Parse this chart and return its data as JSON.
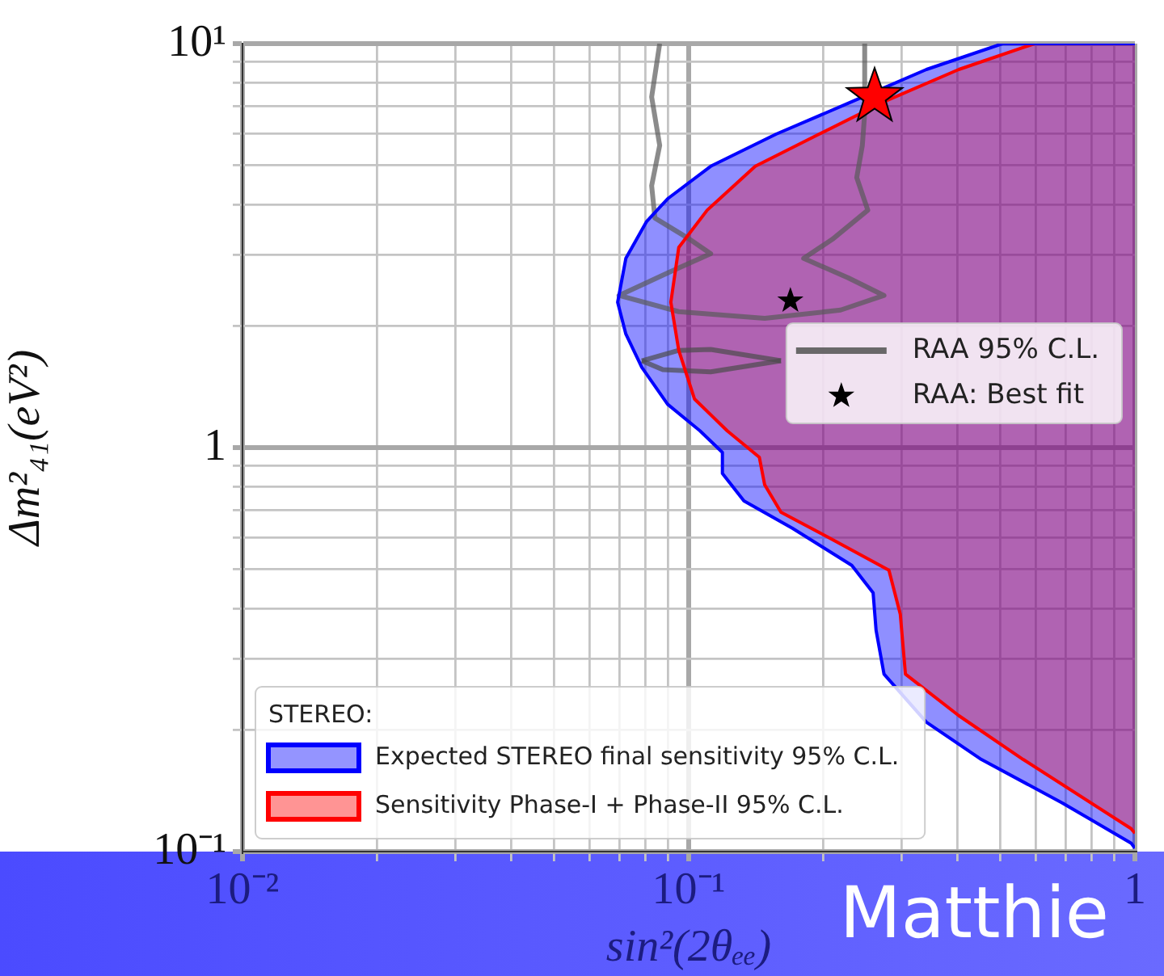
{
  "chart_data": {
    "type": "line",
    "xlabel": "sin²(2θₑₑ)",
    "ylabel": "Δm²₄₁(eV²)",
    "log": "xy",
    "grid": true,
    "legend": "bottom left",
    "legend_title": "STEREO:",
    "xlim": [
      0.01,
      1
    ],
    "ylim": [
      0.1,
      10
    ],
    "xticks": [
      {
        "value": 0.01,
        "label": "10⁻²"
      },
      {
        "value": 0.02,
        "label": null
      },
      {
        "value": 0.03,
        "label": null
      },
      {
        "value": 0.04,
        "label": null
      },
      {
        "value": 0.05,
        "label": null
      },
      {
        "value": 0.06,
        "label": null
      },
      {
        "value": 0.07,
        "label": null
      },
      {
        "value": 0.08,
        "label": null
      },
      {
        "value": 0.09,
        "label": null
      },
      {
        "value": 0.1,
        "label": "10⁻¹"
      },
      {
        "value": 0.2,
        "label": null
      },
      {
        "value": 0.3,
        "label": null
      },
      {
        "value": 0.4,
        "label": null
      },
      {
        "value": 0.5,
        "label": null
      },
      {
        "value": 0.6,
        "label": null
      },
      {
        "value": 0.7,
        "label": null
      },
      {
        "value": 0.8,
        "label": null
      },
      {
        "value": 0.9,
        "label": null
      },
      1
    ],
    "yticks": [
      {
        "value": 0.1,
        "label": "10⁻¹"
      },
      {
        "value": 0.2,
        "label": null
      },
      {
        "value": 0.3,
        "label": null
      },
      {
        "value": 0.4,
        "label": null
      },
      {
        "value": 0.5,
        "label": null
      },
      {
        "value": 0.6,
        "label": null
      },
      {
        "value": 0.7,
        "label": null
      },
      {
        "value": 0.8,
        "label": null
      },
      {
        "value": 0.9,
        "label": null
      },
      1,
      {
        "value": 2,
        "label": null
      },
      {
        "value": 3,
        "label": null
      },
      {
        "value": 4,
        "label": null
      },
      {
        "value": 5,
        "label": null
      },
      {
        "value": 6,
        "label": null
      },
      {
        "value": 7,
        "label": null
      },
      {
        "value": 8,
        "label": null
      },
      {
        "value": 9,
        "label": null
      },
      {
        "value": 10,
        "label": "10¹"
      }
    ],
    "annotations": [
      "Matthie"
    ],
    "series": [
      {
        "type": "area",
        "name": "Expected STEREO final sensitivity 95% C.L.",
        "color": "#0000ff",
        "x": [
          1,
          0.505,
          0.341,
          0.232,
          0.157,
          0.112,
          0.0897,
          0.0805,
          0.0723,
          0.0693,
          0.0723,
          0.0785,
          0.0897,
          0.106,
          0.119,
          0.119,
          0.133,
          0.171,
          0.232,
          0.259,
          0.263,
          0.274,
          0.341,
          0.453,
          0.687,
          0.98,
          1
        ],
        "values": [
          10,
          10,
          8.63,
          7.18,
          5.97,
          4.97,
          4.13,
          3.63,
          2.94,
          2.29,
          1.91,
          1.58,
          1.28,
          1.1,
          0.973,
          0.863,
          0.738,
          0.631,
          0.511,
          0.437,
          0.353,
          0.275,
          0.209,
          0.169,
          0.132,
          0.105,
          0.102
        ]
      },
      {
        "type": "area",
        "name": "Sensitivity Phase-I + Phase-II 95% C.L.",
        "color": "#ff0000",
        "x": [
          1,
          0.596,
          0.403,
          0.274,
          0.196,
          0.141,
          0.11,
          0.095,
          0.0912,
          0.095,
          0.103,
          0.122,
          0.144,
          0.148,
          0.161,
          0.207,
          0.281,
          0.298,
          0.306,
          0.403,
          0.562,
          0.98,
          1
        ],
        "values": [
          10,
          10,
          8.63,
          7.18,
          5.97,
          4.97,
          3.87,
          3.13,
          2.29,
          1.74,
          1.32,
          1.1,
          0.946,
          0.809,
          0.692,
          0.597,
          0.497,
          0.387,
          0.275,
          0.217,
          0.169,
          0.114,
          0.111
        ]
      },
      {
        "name": "RAA 95% C.L.",
        "color": "#5a5a5a",
        "x": [
          0.0861,
          0.0826,
          0.0861,
          0.0826,
          0.084,
          0.0992,
          0.112,
          0.0912,
          0.0698,
          0.095,
          0.148,
          0.219,
          0.274,
          0.228,
          0.181,
          0.21,
          0.252,
          0.238,
          0.245,
          0.248,
          0.248
        ],
        "values": [
          10,
          7.38,
          5.6,
          4.45,
          3.7,
          3.31,
          3.02,
          2.73,
          2.38,
          2.17,
          2.09,
          2.19,
          2.38,
          2.63,
          2.94,
          3.28,
          3.87,
          4.66,
          5.6,
          6.73,
          10
        ]
      },
      {
        "type": "line",
        "color": "#4c4c4c",
        "x": [
          0.0785,
          0.095,
          0.112,
          0.161
        ],
        "values": [
          1.64,
          1.74,
          1.75,
          1.64
        ]
      },
      {
        "type": "line",
        "color": "#4c4c4c",
        "x": [
          0.0785,
          0.0875,
          0.112,
          0.161
        ],
        "values": [
          1.64,
          1.56,
          1.54,
          1.64
        ]
      },
      {
        "type": "scatter",
        "name": "RAA: Best fit",
        "marker": "star",
        "color": "#000000",
        "x": [
          0.169
        ],
        "values": [
          2.31
        ]
      },
      {
        "type": "scatter",
        "marker": "star",
        "color": "#ff0000",
        "x": [
          0.261
        ],
        "values": [
          7.38
        ]
      }
    ]
  }
}
